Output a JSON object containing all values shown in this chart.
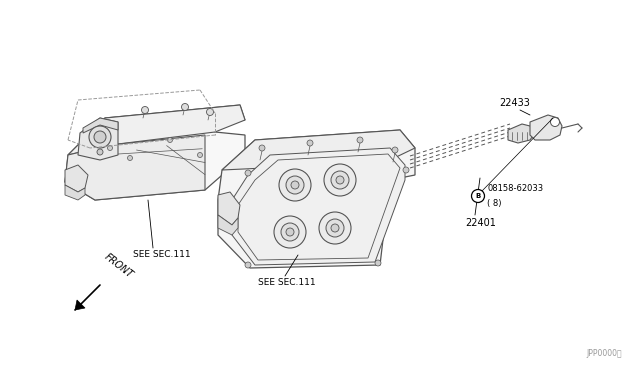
{
  "bg_color": "#ffffff",
  "lc": "#555555",
  "tc": "#000000",
  "fig_width": 6.4,
  "fig_height": 3.72,
  "dpi": 100,
  "labels": {
    "part1": "22433",
    "part2": "22401",
    "part3_line1": "08158-62033",
    "part3_line2": "( 8)",
    "see_sec_left": "SEE SEC.111",
    "see_sec_right": "SEE SEC.111",
    "front": "FRONT",
    "page_code": "JPP0000・"
  }
}
